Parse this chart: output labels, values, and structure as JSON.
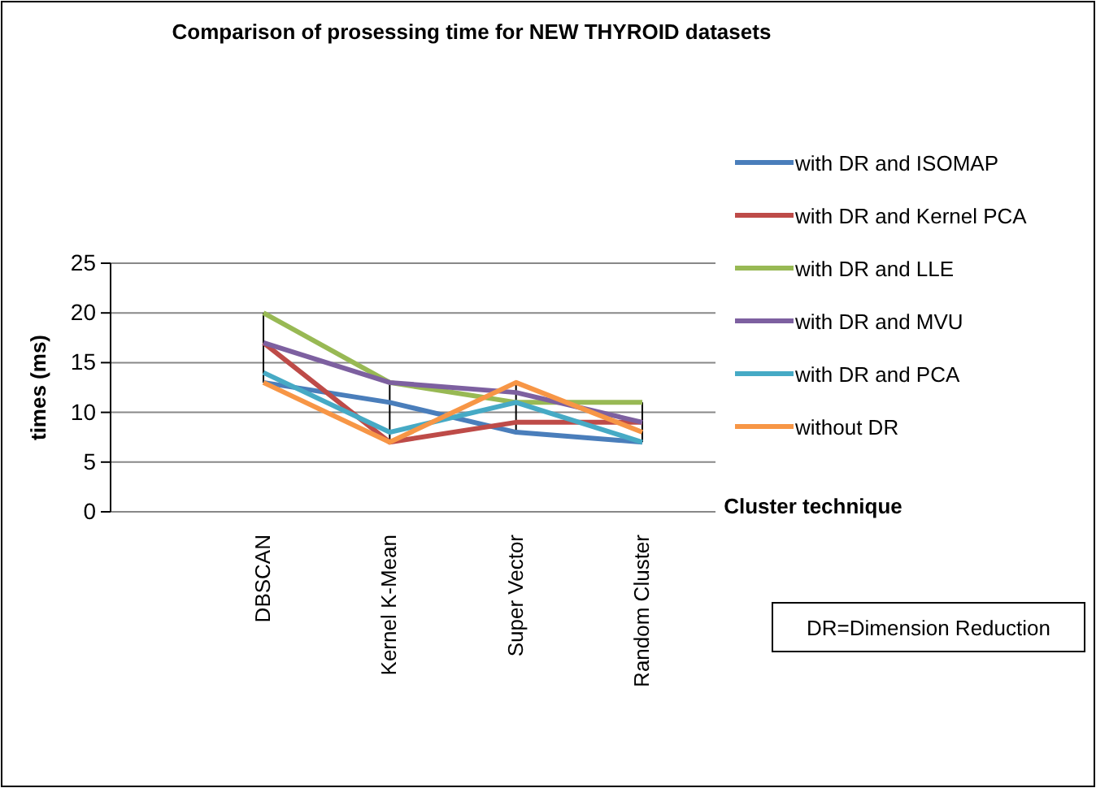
{
  "chart_data": {
    "type": "line",
    "title": "Comparison of prosessing time for NEW THYROID datasets",
    "xlabel": "Cluster technique",
    "ylabel": "times (ms)",
    "categories": [
      "DBSCAN",
      "Kernel K-Mean",
      "Super Vector",
      "Random Cluster"
    ],
    "series": [
      {
        "name": "with DR and ISOMAP",
        "color": "#4a7ebb",
        "values": [
          13,
          11,
          8,
          7
        ]
      },
      {
        "name": "with DR and Kernel PCA",
        "color": "#be4b48",
        "values": [
          17,
          7,
          9,
          9
        ]
      },
      {
        "name": "with DR and LLE",
        "color": "#98b954",
        "values": [
          20,
          13,
          11,
          11
        ]
      },
      {
        "name": "with DR and MVU",
        "color": "#7d60a0",
        "values": [
          17,
          13,
          12,
          9
        ]
      },
      {
        "name": "with DR and PCA",
        "color": "#46aac5",
        "values": [
          14,
          8,
          11,
          7
        ]
      },
      {
        "name": "without DR",
        "color": "#f79646",
        "values": [
          13,
          7,
          13,
          8
        ]
      }
    ],
    "ylim": [
      0,
      25
    ],
    "yticks": [
      0,
      5,
      10,
      15,
      20,
      25
    ],
    "grid": "y",
    "legend": "right",
    "marker": "none",
    "line_style": "solid",
    "annotations": [
      "DR=Dimension Reduction"
    ]
  }
}
